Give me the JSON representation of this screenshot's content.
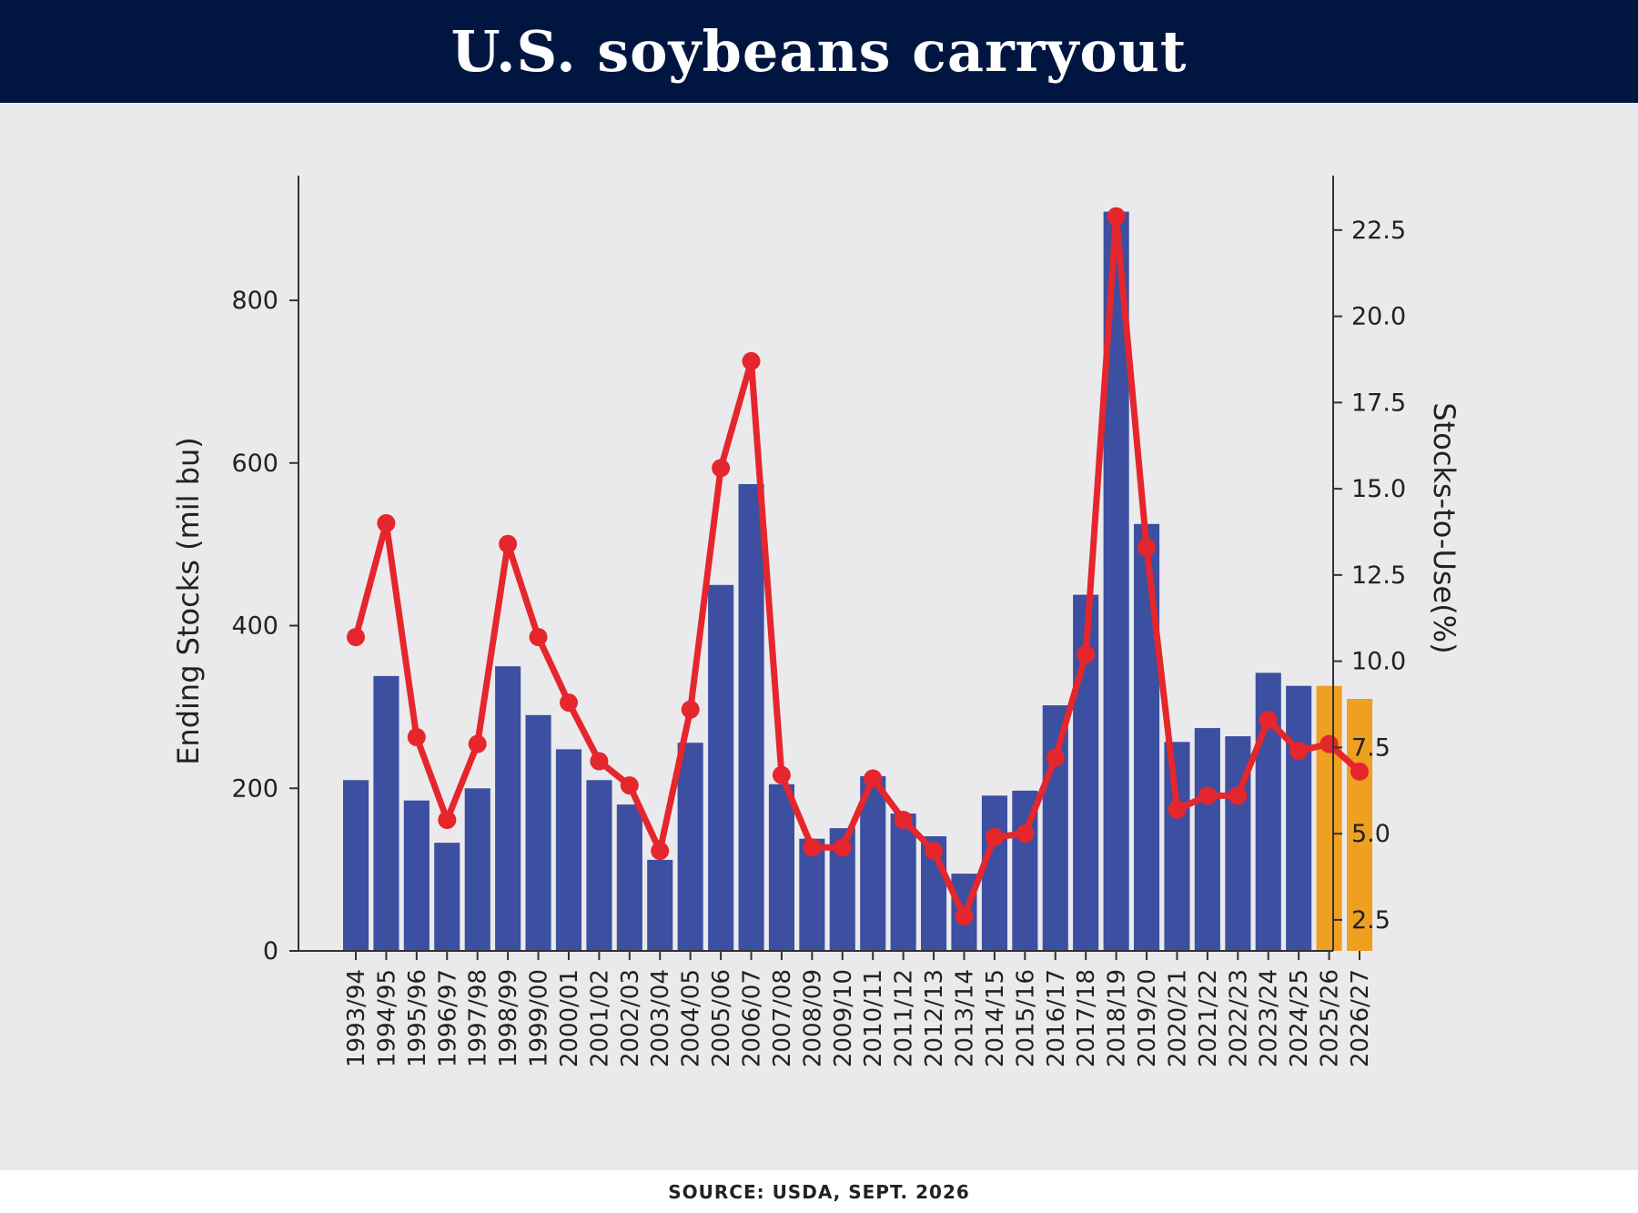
{
  "header": {
    "title": "U.S. soybeans carryout"
  },
  "footer": {
    "source": "SOURCE: USDA, SEPT. 2026"
  },
  "colors": {
    "header_bg": "#001641",
    "panel_bg": "#eaeaec",
    "bar_actual": "#3c4fa0",
    "bar_projected": "#f0a020",
    "line": "#e5262c"
  },
  "chart_data": {
    "type": "bar",
    "categories": [
      "1993/94",
      "1994/95",
      "1995/96",
      "1996/97",
      "1997/98",
      "1998/99",
      "1999/00",
      "2000/01",
      "2001/02",
      "2002/03",
      "2003/04",
      "2004/05",
      "2005/06",
      "2006/07",
      "2007/08",
      "2008/09",
      "2009/10",
      "2010/11",
      "2011/12",
      "2012/13",
      "2013/14",
      "2014/15",
      "2015/16",
      "2016/17",
      "2017/18",
      "2018/19",
      "2019/20",
      "2020/21",
      "2021/22",
      "2022/23",
      "2023/24",
      "2024/25",
      "2025/26",
      "2026/27"
    ],
    "series": [
      {
        "type": "bar",
        "axis": "left",
        "values": [
          210,
          338,
          185,
          133,
          200,
          350,
          290,
          248,
          210,
          180,
          112,
          256,
          450,
          574,
          205,
          138,
          151,
          215,
          169,
          141,
          95,
          191,
          197,
          302,
          438,
          909,
          525,
          257,
          274,
          264,
          342,
          326,
          326,
          310
        ]
      },
      {
        "type": "line",
        "axis": "right",
        "values": [
          10.7,
          14.0,
          7.8,
          5.4,
          7.6,
          13.4,
          10.7,
          8.8,
          7.1,
          6.4,
          4.5,
          8.6,
          15.6,
          18.7,
          6.7,
          4.6,
          4.6,
          6.6,
          5.4,
          4.5,
          2.6,
          4.9,
          5.0,
          7.2,
          10.2,
          22.9,
          13.3,
          5.7,
          6.1,
          6.1,
          8.3,
          7.4,
          7.6,
          6.8
        ]
      }
    ],
    "projected_from_index": 32,
    "ylabel": "Ending Stocks (mil bu)",
    "ylabel_right": "Stocks-to-Use(%)",
    "ylim": [
      0,
      950
    ],
    "ylim_right": [
      1.6,
      24.0
    ],
    "yticks": [
      0,
      200,
      400,
      600,
      800
    ],
    "yticks_right": [
      2.5,
      5.0,
      7.5,
      10.0,
      12.5,
      15.0,
      17.5,
      20.0,
      22.5
    ],
    "grid": false
  }
}
